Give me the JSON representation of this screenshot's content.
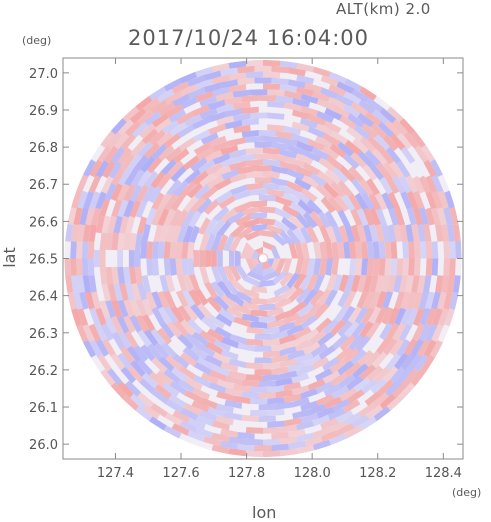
{
  "header": {
    "altitude_label": "ALT(km)  2.0",
    "timestamp": "2017/10/24  16:04:00"
  },
  "chart_data": {
    "type": "heatmap",
    "title": "2017/10/24  16:04:00",
    "subtitle": "ALT(km)  2.0",
    "xlabel": "lon",
    "ylabel": "lat",
    "x_unit": "(deg)",
    "y_unit": "(deg)",
    "xlim": [
      127.24,
      128.46
    ],
    "ylim": [
      25.96,
      27.04
    ],
    "x_ticks": [
      127.4,
      127.6,
      127.8,
      128.0,
      128.2,
      128.4
    ],
    "x_tick_labels": [
      "127.4",
      "127.6",
      "127.8",
      "128.0",
      "128.2",
      "128.4"
    ],
    "y_ticks": [
      26.0,
      26.1,
      26.2,
      26.3,
      26.4,
      26.5,
      26.6,
      26.7,
      26.8,
      26.9,
      27.0
    ],
    "y_tick_labels": [
      "26.0",
      "26.1",
      "26.2",
      "26.3",
      "26.4",
      "26.5",
      "26.6",
      "26.7",
      "26.8",
      "26.9",
      "27.0"
    ],
    "radar_center": {
      "lon": 127.85,
      "lat": 26.5
    },
    "radar_range_deg_lat": 0.535,
    "colors": {
      "positive": "#f4a0a0",
      "negative": "#a8a8f6",
      "frame": "#888888",
      "text": "#555555"
    },
    "grid": false
  }
}
